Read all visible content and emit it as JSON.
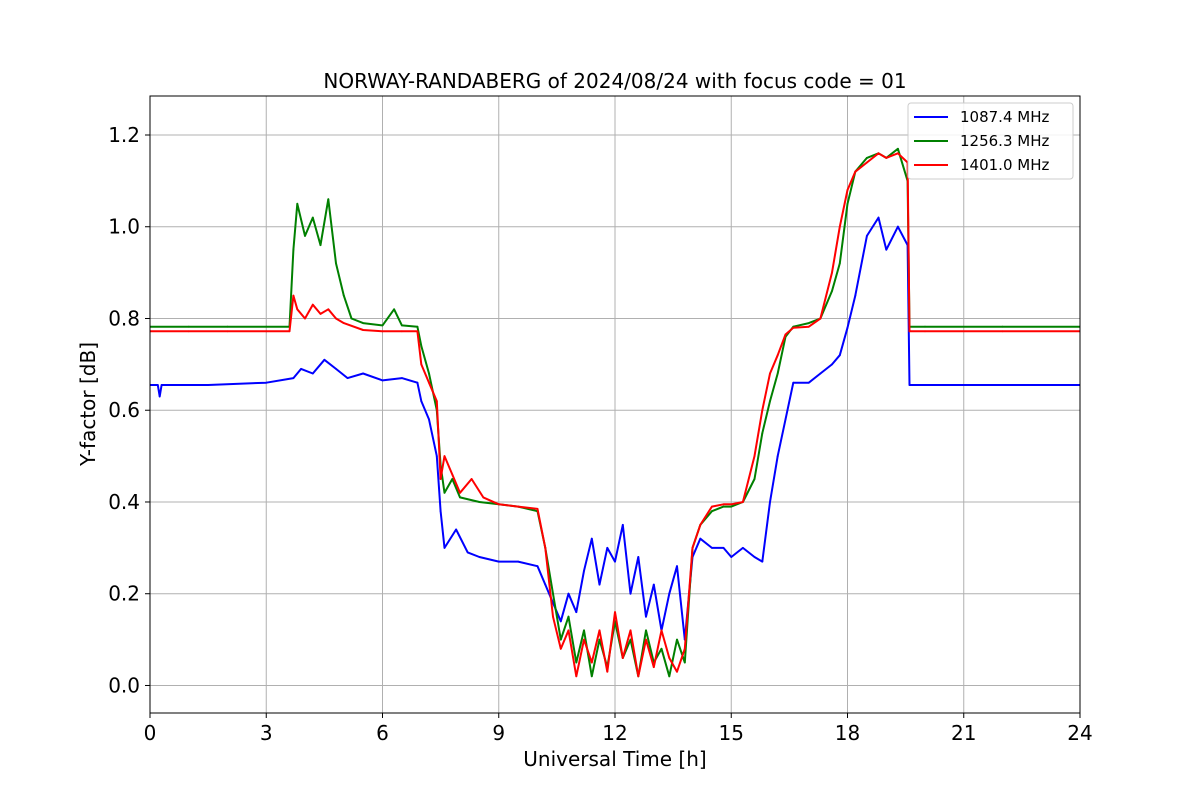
{
  "chart_data": {
    "type": "line",
    "title": "NORWAY-RANDABERG of 2024/08/24 with focus code = 01",
    "xlabel": "Universal Time [h]",
    "ylabel": "Y-factor [dB]",
    "xlim": [
      0,
      24
    ],
    "ylim": [
      -0.06,
      1.285
    ],
    "xticks": [
      0,
      3,
      6,
      9,
      12,
      15,
      18,
      21,
      24
    ],
    "yticks": [
      0.0,
      0.2,
      0.4,
      0.6,
      0.8,
      1.0,
      1.2
    ],
    "ytick_labels": [
      "0.0",
      "0.2",
      "0.4",
      "0.6",
      "0.8",
      "1.0",
      "1.2"
    ],
    "grid": true,
    "legend_position": "top-right",
    "series": [
      {
        "name": "1087.4 MHz",
        "color": "#0000ff",
        "x": [
          0,
          0.2,
          0.25,
          0.3,
          1.5,
          3.0,
          3.7,
          3.9,
          4.2,
          4.5,
          4.8,
          5.1,
          5.5,
          6.0,
          6.5,
          6.9,
          7.0,
          7.2,
          7.4,
          7.5,
          7.6,
          7.9,
          8.2,
          8.5,
          9.0,
          9.5,
          10.0,
          10.2,
          10.4,
          10.6,
          10.8,
          11.0,
          11.2,
          11.4,
          11.6,
          11.8,
          12.0,
          12.2,
          12.4,
          12.6,
          12.8,
          13.0,
          13.2,
          13.4,
          13.6,
          13.8,
          14.0,
          14.2,
          14.5,
          14.8,
          15.0,
          15.3,
          15.6,
          15.8,
          16.0,
          16.2,
          16.4,
          16.6,
          17.0,
          17.3,
          17.6,
          17.8,
          18.0,
          18.2,
          18.5,
          18.8,
          19.0,
          19.3,
          19.55,
          19.6,
          20.0,
          22.0,
          24.0
        ],
        "y": [
          0.655,
          0.655,
          0.63,
          0.655,
          0.655,
          0.66,
          0.67,
          0.69,
          0.68,
          0.71,
          0.69,
          0.67,
          0.68,
          0.665,
          0.67,
          0.66,
          0.62,
          0.58,
          0.5,
          0.38,
          0.3,
          0.34,
          0.29,
          0.28,
          0.27,
          0.27,
          0.26,
          0.22,
          0.18,
          0.14,
          0.2,
          0.16,
          0.25,
          0.32,
          0.22,
          0.3,
          0.27,
          0.35,
          0.2,
          0.28,
          0.15,
          0.22,
          0.12,
          0.2,
          0.26,
          0.1,
          0.28,
          0.32,
          0.3,
          0.3,
          0.28,
          0.3,
          0.28,
          0.27,
          0.4,
          0.5,
          0.58,
          0.66,
          0.66,
          0.68,
          0.7,
          0.72,
          0.78,
          0.85,
          0.98,
          1.02,
          0.95,
          1.0,
          0.96,
          0.655,
          0.655,
          0.655,
          0.655
        ]
      },
      {
        "name": "1256.3 MHz",
        "color": "#008000",
        "x": [
          0,
          1.0,
          2.0,
          3.0,
          3.6,
          3.7,
          3.8,
          4.0,
          4.2,
          4.4,
          4.6,
          4.8,
          5.0,
          5.2,
          5.5,
          6.0,
          6.3,
          6.5,
          6.9,
          7.0,
          7.2,
          7.4,
          7.5,
          7.6,
          7.8,
          8.0,
          8.5,
          9.0,
          9.5,
          10.0,
          10.2,
          10.4,
          10.6,
          10.8,
          11.0,
          11.2,
          11.4,
          11.6,
          11.8,
          12.0,
          12.2,
          12.4,
          12.6,
          12.8,
          13.0,
          13.2,
          13.4,
          13.6,
          13.8,
          14.0,
          14.2,
          14.5,
          14.8,
          15.0,
          15.3,
          15.6,
          15.8,
          16.0,
          16.2,
          16.4,
          16.6,
          17.0,
          17.3,
          17.6,
          17.8,
          18.0,
          18.2,
          18.5,
          18.8,
          19.0,
          19.3,
          19.55,
          19.6,
          20.0,
          22.0,
          24.0
        ],
        "y": [
          0.782,
          0.782,
          0.782,
          0.782,
          0.782,
          0.95,
          1.05,
          0.98,
          1.02,
          0.96,
          1.06,
          0.92,
          0.85,
          0.8,
          0.79,
          0.785,
          0.82,
          0.785,
          0.782,
          0.74,
          0.68,
          0.6,
          0.48,
          0.42,
          0.45,
          0.41,
          0.4,
          0.395,
          0.39,
          0.38,
          0.3,
          0.2,
          0.1,
          0.15,
          0.05,
          0.12,
          0.02,
          0.1,
          0.04,
          0.14,
          0.06,
          0.1,
          0.02,
          0.12,
          0.05,
          0.08,
          0.02,
          0.1,
          0.05,
          0.3,
          0.35,
          0.38,
          0.39,
          0.39,
          0.4,
          0.45,
          0.55,
          0.62,
          0.68,
          0.76,
          0.782,
          0.79,
          0.8,
          0.86,
          0.92,
          1.05,
          1.12,
          1.15,
          1.16,
          1.15,
          1.17,
          1.1,
          0.782,
          0.782,
          0.782,
          0.782
        ]
      },
      {
        "name": "1401.0 MHz",
        "color": "#ff0000",
        "x": [
          0,
          1.0,
          2.0,
          3.0,
          3.6,
          3.7,
          3.8,
          4.0,
          4.2,
          4.4,
          4.6,
          4.8,
          5.0,
          5.5,
          6.0,
          6.5,
          6.9,
          7.0,
          7.2,
          7.4,
          7.5,
          7.6,
          7.8,
          8.0,
          8.3,
          8.6,
          9.0,
          9.5,
          10.0,
          10.2,
          10.4,
          10.6,
          10.8,
          11.0,
          11.2,
          11.4,
          11.6,
          11.8,
          12.0,
          12.2,
          12.4,
          12.6,
          12.8,
          13.0,
          13.2,
          13.4,
          13.6,
          13.8,
          14.0,
          14.2,
          14.5,
          14.8,
          15.0,
          15.3,
          15.6,
          15.8,
          16.0,
          16.2,
          16.4,
          16.6,
          17.0,
          17.3,
          17.6,
          17.8,
          18.0,
          18.2,
          18.5,
          18.8,
          19.0,
          19.3,
          19.55,
          19.6,
          20.0,
          22.0,
          24.0
        ],
        "y": [
          0.772,
          0.772,
          0.772,
          0.772,
          0.772,
          0.85,
          0.82,
          0.8,
          0.83,
          0.81,
          0.82,
          0.8,
          0.79,
          0.775,
          0.772,
          0.772,
          0.772,
          0.7,
          0.66,
          0.62,
          0.45,
          0.5,
          0.46,
          0.42,
          0.45,
          0.41,
          0.395,
          0.39,
          0.385,
          0.3,
          0.15,
          0.08,
          0.12,
          0.02,
          0.1,
          0.05,
          0.12,
          0.03,
          0.16,
          0.06,
          0.12,
          0.02,
          0.1,
          0.04,
          0.12,
          0.06,
          0.03,
          0.08,
          0.3,
          0.35,
          0.39,
          0.395,
          0.395,
          0.4,
          0.5,
          0.6,
          0.68,
          0.72,
          0.765,
          0.78,
          0.782,
          0.8,
          0.9,
          1.0,
          1.08,
          1.12,
          1.14,
          1.16,
          1.15,
          1.16,
          1.14,
          0.772,
          0.772,
          0.772,
          0.772
        ]
      }
    ]
  }
}
